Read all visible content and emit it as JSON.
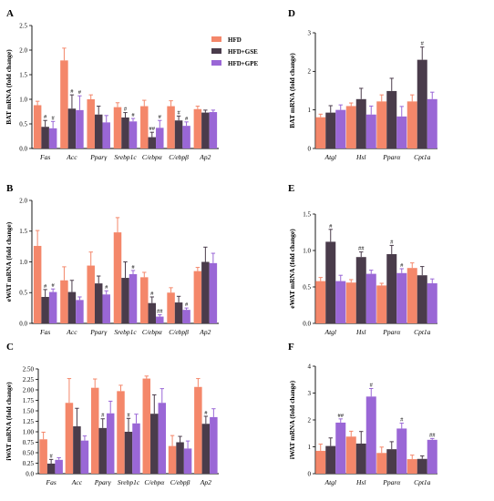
{
  "legend": {
    "items": [
      {
        "label": "HFD",
        "color": "#F4876A"
      },
      {
        "label": "HFD+GSE",
        "color": "#4A3C4B"
      },
      {
        "label": "HFD+GPE",
        "color": "#9A67D6"
      }
    ]
  },
  "chart_data": [
    {
      "id": "A",
      "type": "bar",
      "title": "",
      "panel_label": "A",
      "ylabel": "BAT mRNA (fold change)",
      "xlabel": "",
      "ylim": [
        0,
        2.5
      ],
      "yticks": [
        "0.0",
        "0.5",
        "1.0",
        "1.5",
        "2.0",
        "2.5"
      ],
      "ytick_values": [
        0,
        0.5,
        1,
        1.5,
        2,
        2.5
      ],
      "categories": [
        "Fas",
        "Acc",
        "Pparγ",
        "Srebp1c",
        "C/ebpα",
        "C/ebpβ",
        "Ap2"
      ],
      "series": [
        {
          "name": "HFD",
          "values": [
            0.88,
            1.79,
            1.0,
            0.84,
            0.86,
            0.86,
            0.8
          ],
          "errors": [
            0.08,
            0.25,
            0.09,
            0.09,
            0.12,
            0.11,
            0.06
          ],
          "sig": [
            "",
            "",
            "",
            "",
            "",
            "",
            ""
          ]
        },
        {
          "name": "HFD+GSE",
          "values": [
            0.44,
            0.81,
            0.69,
            0.63,
            0.23,
            0.57,
            0.73
          ],
          "errors": [
            0.13,
            0.28,
            0.17,
            0.1,
            0.1,
            0.09,
            0.05
          ],
          "sig": [
            "#",
            "#",
            "",
            "#",
            "##",
            "#",
            ""
          ]
        },
        {
          "name": "HFD+GPE",
          "values": [
            0.41,
            0.78,
            0.53,
            0.55,
            0.42,
            0.46,
            0.74
          ],
          "errors": [
            0.14,
            0.29,
            0.14,
            0.06,
            0.15,
            0.08,
            0.04
          ],
          "sig": [
            "#",
            "#",
            "",
            "#",
            "#",
            "#",
            ""
          ]
        }
      ],
      "grid": false,
      "legend_position": "top-right"
    },
    {
      "id": "B",
      "type": "bar",
      "title": "",
      "panel_label": "B",
      "ylabel": "eWAT mRNA (fold change)",
      "xlabel": "",
      "ylim": [
        0,
        2.0
      ],
      "yticks": [
        "0.0",
        "0.5",
        "1.0",
        "1.5",
        "2.0"
      ],
      "ytick_values": [
        0,
        0.5,
        1,
        1.5,
        2
      ],
      "categories": [
        "Fas",
        "Acc",
        "Pparγ",
        "Srebp1c",
        "C/ebpα",
        "C/ebpβ",
        "Ap2"
      ],
      "series": [
        {
          "name": "HFD",
          "values": [
            1.26,
            0.7,
            0.94,
            1.48,
            0.75,
            0.5,
            0.85
          ],
          "errors": [
            0.25,
            0.22,
            0.22,
            0.24,
            0.08,
            0.08,
            0.06
          ],
          "sig": [
            "",
            "",
            "",
            "",
            "",
            "",
            ""
          ]
        },
        {
          "name": "HFD+GSE",
          "values": [
            0.43,
            0.51,
            0.65,
            0.74,
            0.33,
            0.34,
            1.0
          ],
          "errors": [
            0.12,
            0.19,
            0.12,
            0.26,
            0.1,
            0.1,
            0.24
          ],
          "sig": [
            "#",
            "",
            "",
            "",
            "#",
            "",
            ""
          ]
        },
        {
          "name": "HFD+GPE",
          "values": [
            0.51,
            0.38,
            0.47,
            0.8,
            0.11,
            0.22,
            0.98
          ],
          "errors": [
            0.05,
            0.05,
            0.06,
            0.06,
            0.03,
            0.03,
            0.16
          ],
          "sig": [
            "#",
            "",
            "#",
            "#",
            "##",
            "#",
            ""
          ]
        }
      ],
      "grid": false,
      "legend_position": "none"
    },
    {
      "id": "C",
      "type": "bar",
      "title": "",
      "panel_label": "C",
      "ylabel": "iWAT mRNA (fold change)",
      "xlabel": "",
      "ylim": [
        0,
        2.5
      ],
      "yticks": [
        "0.0",
        "0.25",
        "0.50",
        "0.75",
        "1.00",
        "1.25",
        "1.50",
        "1.75",
        "2.00",
        "2.25",
        "2.50"
      ],
      "ytick_values": [
        0,
        0.25,
        0.5,
        0.75,
        1,
        1.25,
        1.5,
        1.75,
        2,
        2.25,
        2.5
      ],
      "categories": [
        "Fas",
        "Acc",
        "Pparγ",
        "Srebp1c",
        "C/ebpα",
        "C/ebpβ",
        "Ap2"
      ],
      "series": [
        {
          "name": "HFD",
          "values": [
            0.82,
            1.69,
            2.05,
            1.97,
            2.27,
            0.66,
            2.07
          ],
          "errors": [
            0.17,
            0.58,
            0.21,
            0.14,
            0.06,
            0.25,
            0.2
          ],
          "sig": [
            "",
            "",
            "",
            "",
            "",
            "",
            ""
          ]
        },
        {
          "name": "HFD+GSE",
          "values": [
            0.24,
            1.13,
            1.09,
            1.0,
            1.43,
            0.75,
            1.19
          ],
          "errors": [
            0.1,
            0.43,
            0.22,
            0.32,
            0.45,
            0.14,
            0.18
          ],
          "sig": [
            "#",
            "",
            "#",
            "#",
            "",
            "",
            "#"
          ]
        },
        {
          "name": "HFD+GPE",
          "values": [
            0.33,
            0.79,
            1.44,
            1.2,
            1.69,
            0.6,
            1.35
          ],
          "errors": [
            0.05,
            0.11,
            0.29,
            0.22,
            0.34,
            0.18,
            0.2
          ],
          "sig": [
            "",
            "",
            "",
            "",
            "",
            "",
            ""
          ]
        }
      ],
      "grid": false,
      "legend_position": "none"
    },
    {
      "id": "D",
      "type": "bar",
      "title": "",
      "panel_label": "D",
      "ylabel": "BAT mRNA (fold change)",
      "xlabel": "",
      "ylim": [
        0,
        3
      ],
      "yticks": [
        "0",
        "1",
        "2",
        "3"
      ],
      "ytick_values": [
        0,
        1,
        2,
        3
      ],
      "categories": [
        "Atgl",
        "Hsl",
        "Pparα",
        "Cpt1a"
      ],
      "series": [
        {
          "name": "HFD",
          "values": [
            0.81,
            1.1,
            1.22,
            1.22
          ],
          "errors": [
            0.08,
            0.08,
            0.17,
            0.17
          ],
          "sig": [
            "",
            "",
            "",
            ""
          ]
        },
        {
          "name": "HFD+GSE",
          "values": [
            0.93,
            1.28,
            1.49,
            2.3
          ],
          "errors": [
            0.18,
            0.28,
            0.33,
            0.33
          ],
          "sig": [
            "",
            "",
            "",
            "#"
          ]
        },
        {
          "name": "HFD+GPE",
          "values": [
            1.0,
            0.88,
            0.83,
            1.28
          ],
          "errors": [
            0.13,
            0.22,
            0.26,
            0.18
          ],
          "sig": [
            "",
            "",
            "",
            ""
          ]
        }
      ],
      "grid": false,
      "legend_position": "none"
    },
    {
      "id": "E",
      "type": "bar",
      "title": "",
      "panel_label": "E",
      "ylabel": "eWAT mRNA (fold change)",
      "xlabel": "",
      "ylim": [
        0,
        1.5
      ],
      "yticks": [
        "0.0",
        "0.5",
        "1.0",
        "1.5"
      ],
      "ytick_values": [
        0,
        0.5,
        1,
        1.5
      ],
      "categories": [
        "Atgl",
        "Hsl",
        "Pparα",
        "Cpt1a"
      ],
      "series": [
        {
          "name": "HFD",
          "values": [
            0.58,
            0.56,
            0.52,
            0.76
          ],
          "errors": [
            0.05,
            0.04,
            0.03,
            0.07
          ],
          "sig": [
            "",
            "",
            "",
            ""
          ]
        },
        {
          "name": "HFD+GSE",
          "values": [
            1.12,
            0.91,
            0.95,
            0.66
          ],
          "errors": [
            0.17,
            0.07,
            0.12,
            0.12
          ],
          "sig": [
            "#",
            "##",
            "#",
            ""
          ]
        },
        {
          "name": "HFD+GPE",
          "values": [
            0.58,
            0.68,
            0.69,
            0.55
          ],
          "errors": [
            0.08,
            0.05,
            0.06,
            0.06
          ],
          "sig": [
            "",
            "",
            "#",
            ""
          ]
        }
      ],
      "grid": false,
      "legend_position": "none"
    },
    {
      "id": "F",
      "type": "bar",
      "title": "",
      "panel_label": "F",
      "ylabel": "iWAT mRNA (fold change)",
      "xlabel": "",
      "ylim": [
        0,
        4
      ],
      "yticks": [
        "0",
        "1",
        "2",
        "3",
        "4"
      ],
      "ytick_values": [
        0,
        1,
        2,
        3,
        4
      ],
      "categories": [
        "Atgl",
        "Hsl",
        "Pparα",
        "Cpt1a"
      ],
      "series": [
        {
          "name": "HFD",
          "values": [
            0.85,
            1.38,
            0.77,
            0.54
          ],
          "errors": [
            0.25,
            0.2,
            0.22,
            0.15
          ],
          "sig": [
            "",
            "",
            "",
            ""
          ]
        },
        {
          "name": "HFD+GSE",
          "values": [
            1.03,
            1.12,
            0.91,
            0.55
          ],
          "errors": [
            0.3,
            0.45,
            0.28,
            0.11
          ],
          "sig": [
            "",
            "",
            "",
            ""
          ]
        },
        {
          "name": "HFD+GPE",
          "values": [
            1.9,
            2.87,
            1.68,
            1.26
          ],
          "errors": [
            0.14,
            0.3,
            0.2,
            0.05
          ],
          "sig": [
            "##",
            "#",
            "#",
            "##"
          ]
        }
      ],
      "grid": false,
      "legend_position": "none"
    }
  ]
}
